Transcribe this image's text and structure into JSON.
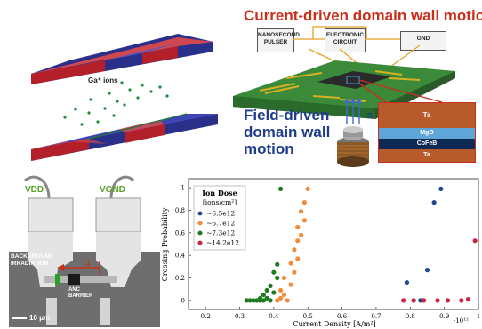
{
  "top_left": {
    "ions_label": "Ga⁺ ions"
  },
  "top_right": {
    "title": "Current-driven domain wall motion",
    "boxes": {
      "pulser": "NANOSECOND PULSER",
      "circuit": "ELECTRONIC CIRCUIT",
      "gnd": "GND"
    },
    "field_title": "Field-driven domain wall motion",
    "b_label": "B",
    "stack_layers": [
      "Ta",
      "MgO",
      "CoFeB",
      "Ta"
    ],
    "colors": {
      "ta": "#b75a2c",
      "mgo": "#5fa6d8",
      "cofeb": "#0c2a55"
    }
  },
  "bottom_left": {
    "vdd": "VDD",
    "vgnd": "VGND",
    "irradiation": "BACKGROUND IRRADIATION",
    "barrier": "ANC BARRIER",
    "j_label": "J",
    "scalebar": "10 μm"
  },
  "chart_data": {
    "type": "scatter",
    "xlabel": "Current Density [A/m²]",
    "ylabel": "Crossing Probability",
    "xlim": [
      0.15,
      1.0
    ],
    "ylim": [
      -0.08,
      1.08
    ],
    "x_ticks": [
      "0.2",
      "0.3",
      "0.4",
      "0.5",
      "0.6",
      "0.7",
      "0.8",
      "0.9",
      "1"
    ],
    "y_ticks": [
      "0",
      "0.2",
      "0.4",
      "0.6",
      "0.8",
      "1"
    ],
    "x_multiplier": "·10¹²",
    "legend_title": "Ion Dose",
    "legend_subtitle": "[ions/cm²]",
    "series": [
      {
        "name": "∼6.5e12",
        "color": "#1f4b8e",
        "points": [
          [
            0.79,
            0.16
          ],
          [
            0.81,
            0
          ],
          [
            0.83,
            0
          ],
          [
            0.85,
            0.27
          ],
          [
            0.87,
            0.87
          ],
          [
            0.89,
            0.99
          ]
        ]
      },
      {
        "name": "∼6.7e12",
        "color": "#f28c3c",
        "points": [
          [
            0.41,
            0
          ],
          [
            0.42,
            0.02
          ],
          [
            0.43,
            0.05
          ],
          [
            0.44,
            0
          ],
          [
            0.42,
            0.09
          ],
          [
            0.45,
            0.14
          ],
          [
            0.43,
            0.2
          ],
          [
            0.46,
            0.25
          ],
          [
            0.45,
            0.33
          ],
          [
            0.47,
            0.37
          ],
          [
            0.46,
            0.45
          ],
          [
            0.47,
            0.53
          ],
          [
            0.48,
            0.58
          ],
          [
            0.47,
            0.65
          ],
          [
            0.49,
            0.71
          ],
          [
            0.48,
            0.79
          ],
          [
            0.49,
            0.87
          ],
          [
            0.5,
            0.99
          ]
        ]
      },
      {
        "name": "∼7.3e12",
        "color": "#1f7a1f",
        "points": [
          [
            0.32,
            0
          ],
          [
            0.33,
            0
          ],
          [
            0.34,
            0
          ],
          [
            0.35,
            0
          ],
          [
            0.36,
            0
          ],
          [
            0.37,
            0
          ],
          [
            0.36,
            0.02
          ],
          [
            0.37,
            0.05
          ],
          [
            0.38,
            0.02
          ],
          [
            0.39,
            0
          ],
          [
            0.38,
            0.09
          ],
          [
            0.39,
            0.13
          ],
          [
            0.4,
            0.07
          ],
          [
            0.41,
            0.2
          ],
          [
            0.4,
            0.25
          ],
          [
            0.41,
            0.32
          ],
          [
            0.42,
            0.99
          ]
        ]
      },
      {
        "name": "∼14.2e12",
        "color": "#cc2440",
        "points": [
          [
            0.78,
            0
          ],
          [
            0.81,
            0
          ],
          [
            0.84,
            0
          ],
          [
            0.88,
            0
          ],
          [
            0.91,
            0
          ],
          [
            0.95,
            0
          ],
          [
            0.97,
            0.01
          ],
          [
            0.99,
            0.53
          ]
        ]
      }
    ]
  }
}
